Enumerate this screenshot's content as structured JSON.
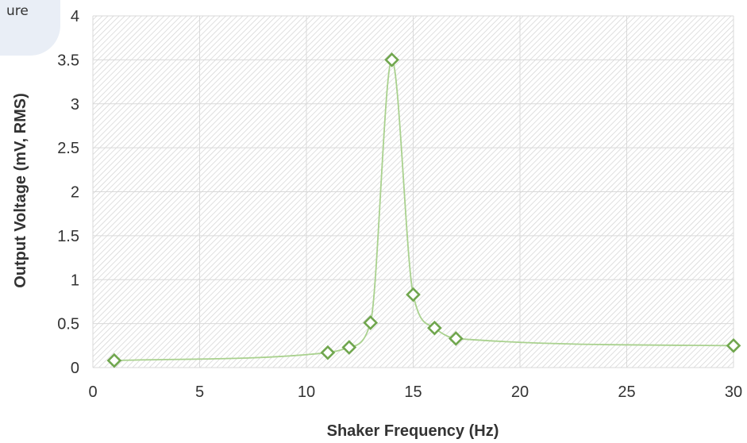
{
  "corner_note": "ure",
  "chart_data": {
    "type": "scatter",
    "title": "",
    "xlabel": "Shaker Frequency (Hz)",
    "ylabel": "Output Voltage (mV, RMS)",
    "xlim": [
      0,
      30
    ],
    "ylim": [
      0,
      4
    ],
    "xticks": [
      0,
      5,
      10,
      15,
      20,
      25,
      30
    ],
    "yticks": [
      0,
      0.5,
      1,
      1.5,
      2,
      2.5,
      3,
      3.5,
      4
    ],
    "grid": true,
    "background": "diagonal hatch",
    "smoothed_line": true,
    "colors": {
      "series": "#70a64e",
      "line": "#a9d18e",
      "grid": "#d9d9d9"
    },
    "series": [
      {
        "x": [
          1,
          11,
          12,
          13,
          14,
          15,
          16,
          17,
          30
        ],
        "y": [
          0.08,
          0.17,
          0.23,
          0.51,
          3.5,
          0.83,
          0.45,
          0.33,
          0.25
        ]
      }
    ]
  }
}
